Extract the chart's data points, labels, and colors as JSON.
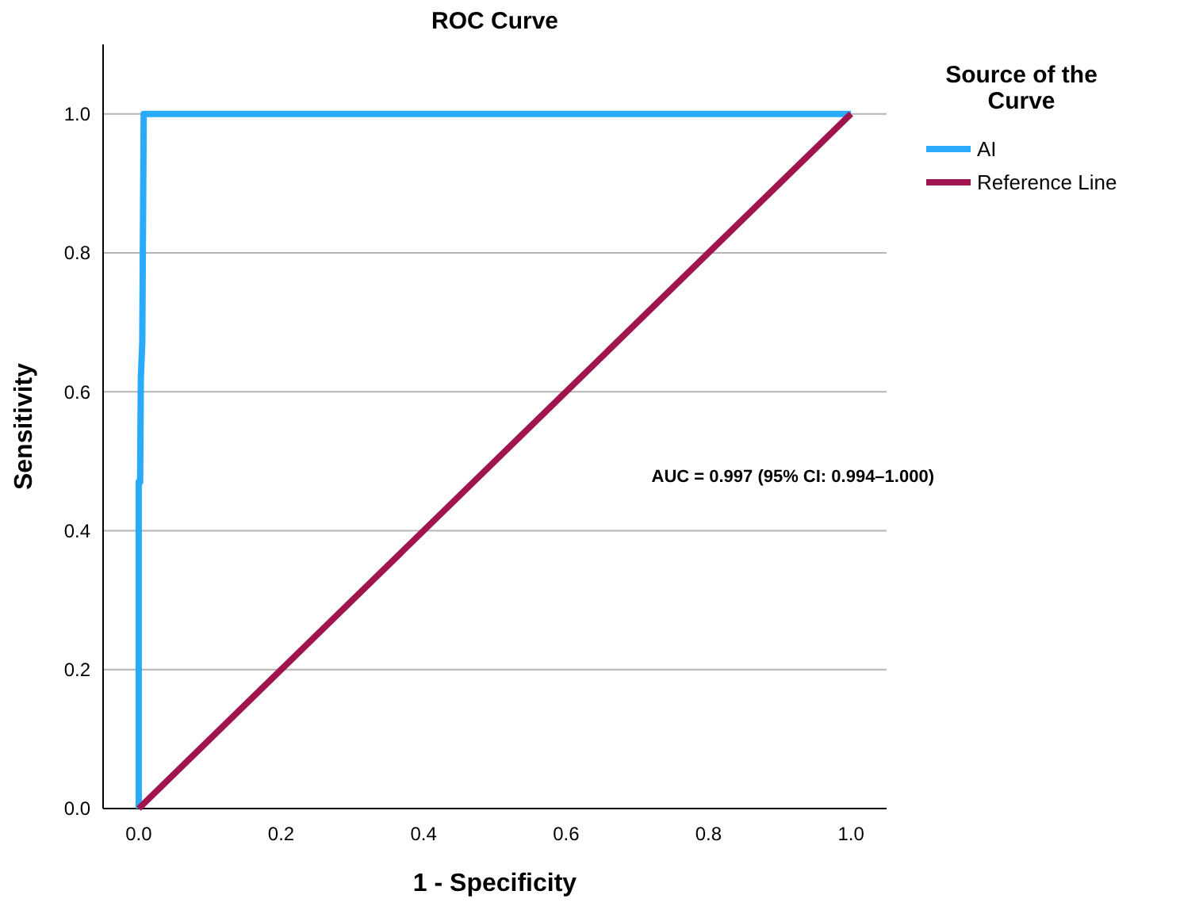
{
  "chart_data": {
    "type": "line",
    "title": "ROC Curve",
    "xlabel": "1 - Specificity",
    "ylabel": "Sensitivity",
    "legend_title": "Source of the Curve",
    "legend": "top right",
    "grid": "y",
    "xlim": [
      -0.05,
      1.05
    ],
    "ylim": [
      0,
      1.1
    ],
    "xticks": [
      {
        "value": 0,
        "label": "0.0"
      },
      {
        "value": 0.2,
        "label": "0.2"
      },
      {
        "value": 0.4,
        "label": "0.4"
      },
      {
        "value": 0.6,
        "label": "0.6"
      },
      {
        "value": 0.8,
        "label": "0.8"
      },
      {
        "value": 1,
        "label": "1.0"
      }
    ],
    "yticks": [
      {
        "value": 0,
        "label": "0.0"
      },
      {
        "value": 0.2,
        "label": "0.2"
      },
      {
        "value": 0.4,
        "label": "0.4"
      },
      {
        "value": 0.6,
        "label": "0.6"
      },
      {
        "value": 0.8,
        "label": "0.8"
      },
      {
        "value": 1,
        "label": "1.0"
      }
    ],
    "series": [
      {
        "name": "AI",
        "color": "#29aafa",
        "x": [
          0,
          0,
          0.002,
          0.003,
          0.005,
          0.007,
          1
        ],
        "values": [
          0,
          0.47,
          0.47,
          0.62,
          0.67,
          1,
          1
        ]
      },
      {
        "name": "Reference Line",
        "color": "#a0154e",
        "x": [
          0,
          1
        ],
        "values": [
          0,
          1
        ]
      }
    ],
    "annotations": [
      "AUC = 0.997 (95% CI: 0.994–1.000)"
    ]
  }
}
